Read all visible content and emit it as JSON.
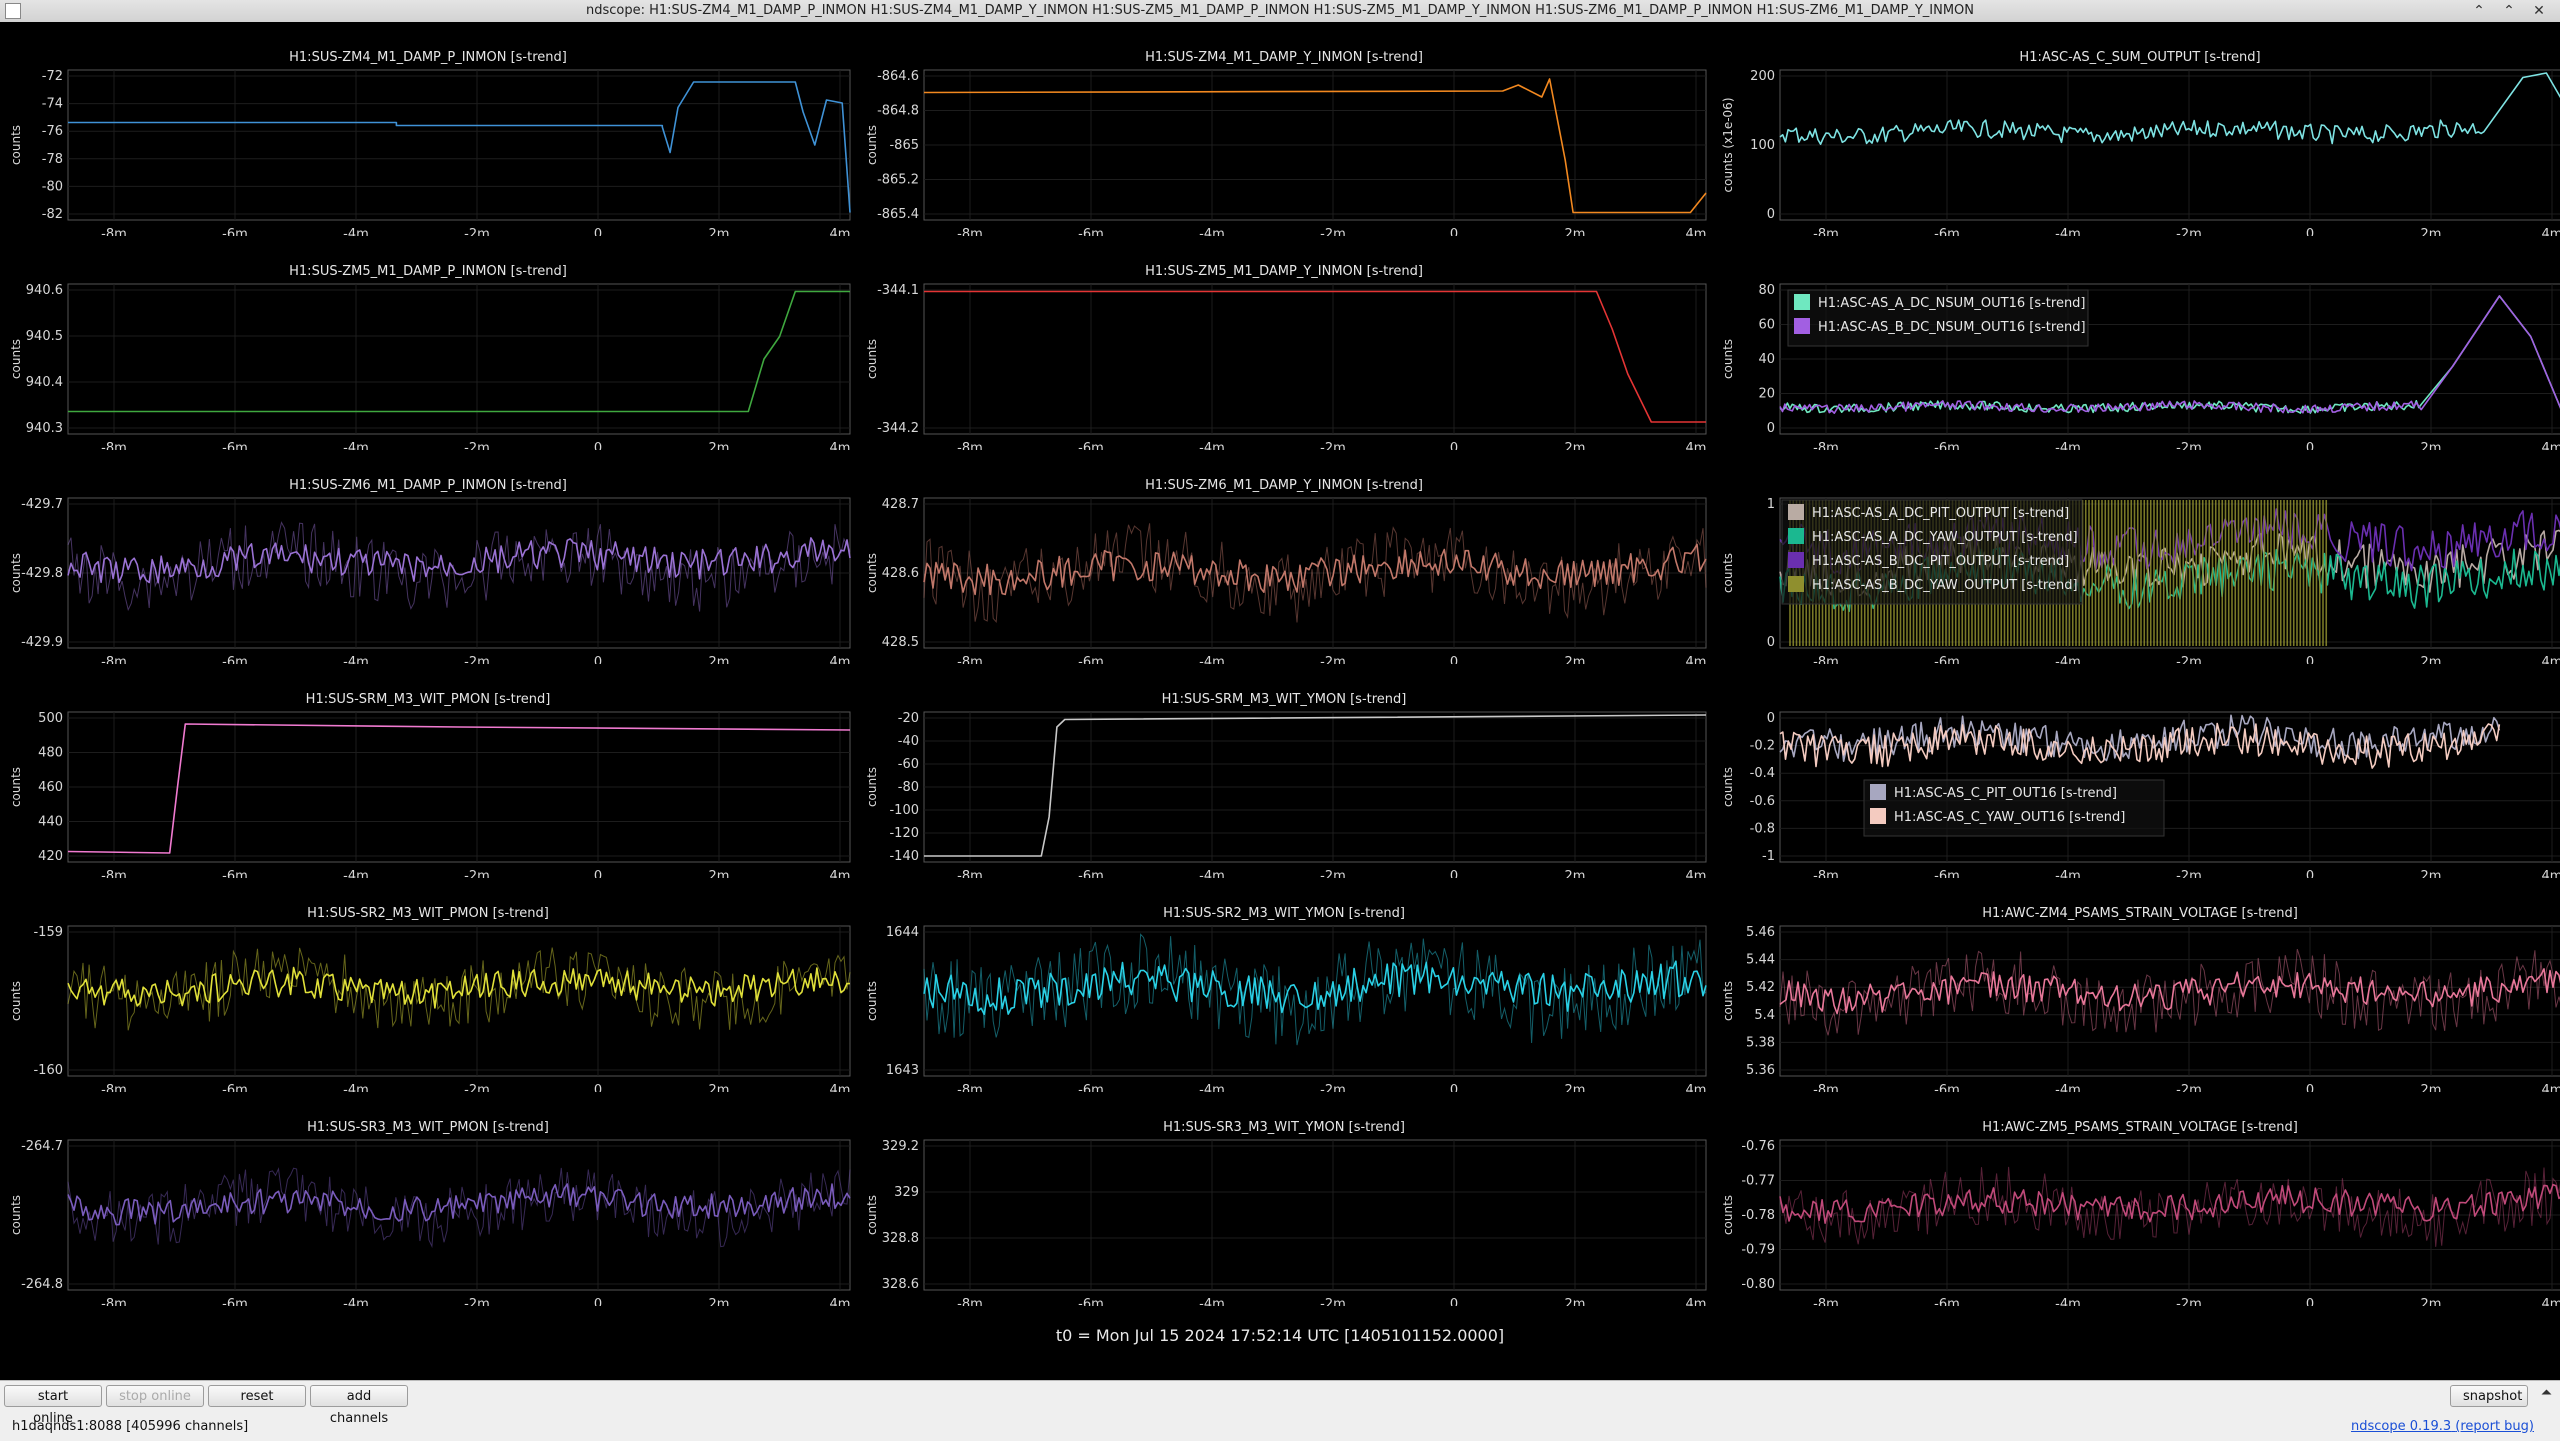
{
  "window": {
    "title": "ndscope: H1:SUS-ZM4_M1_DAMP_P_INMON H1:SUS-ZM4_M1_DAMP_Y_INMON H1:SUS-ZM5_M1_DAMP_P_INMON H1:SUS-ZM5_M1_DAMP_Y_INMON H1:SUS-ZM6_M1_DAMP_P_INMON H1:SUS-ZM6_M1_DAMP_Y_INMON",
    "minimize_glyph": "⌃",
    "maximize_glyph": "⌃",
    "close_glyph": "✕"
  },
  "x_tick_labels": [
    "-8m",
    "-6m",
    "-4m",
    "-2m",
    "0",
    "2m",
    "4m"
  ],
  "plots": [
    {
      "title": "H1:SUS-ZM4_M1_DAMP_P_INMON [s-trend]",
      "ylabel": "counts",
      "yticks": [
        "-72",
        "-74",
        "-76",
        "-78",
        "-80",
        "-82"
      ],
      "series": [
        {
          "color": "#3f92d6"
        }
      ]
    },
    {
      "title": "H1:SUS-ZM4_M1_DAMP_Y_INMON [s-trend]",
      "ylabel": "counts",
      "yticks": [
        "-864.6",
        "-864.8",
        "-865",
        "-865.2",
        "-865.4"
      ],
      "series": [
        {
          "color": "#f2881f"
        }
      ]
    },
    {
      "title": "H1:ASC-AS_C_SUM_OUTPUT [s-trend]",
      "ylabel": "counts (x1e-06)",
      "yticks": [
        "200",
        "100",
        "0"
      ],
      "series": [
        {
          "color": "#7ee3e3"
        }
      ]
    },
    {
      "title": "H1:SUS-ZM5_M1_DAMP_P_INMON [s-trend]",
      "ylabel": "counts",
      "yticks": [
        "940.6",
        "940.5",
        "940.4",
        "940.3"
      ],
      "series": [
        {
          "color": "#3fa83f"
        }
      ]
    },
    {
      "title": "H1:SUS-ZM5_M1_DAMP_Y_INMON [s-trend]",
      "ylabel": "counts",
      "yticks": [
        "-344.1",
        "-344.2"
      ],
      "series": [
        {
          "color": "#e43434"
        }
      ]
    },
    {
      "title": "",
      "ylabel": "counts",
      "yticks": [
        "80",
        "60",
        "40",
        "20",
        "0"
      ],
      "series": [
        {
          "name": "H1:ASC-AS_A_DC_NSUM_OUT16 [s-trend]",
          "color": "#6fe8c0"
        },
        {
          "name": "H1:ASC-AS_B_DC_NSUM_OUT16 [s-trend]",
          "color": "#a25fe2"
        }
      ]
    },
    {
      "title": "H1:SUS-ZM6_M1_DAMP_P_INMON [s-trend]",
      "ylabel": "counts",
      "yticks": [
        "-429.7",
        "-429.8",
        "-429.9"
      ],
      "series": [
        {
          "color": "#9a72d4"
        }
      ]
    },
    {
      "title": "H1:SUS-ZM6_M1_DAMP_Y_INMON [s-trend]",
      "ylabel": "counts",
      "yticks": [
        "428.7",
        "428.6",
        "428.5"
      ],
      "series": [
        {
          "color": "#c2786a"
        }
      ]
    },
    {
      "title": "",
      "ylabel": "counts",
      "yticks": [
        "1",
        "0"
      ],
      "series": [
        {
          "name": "H1:ASC-AS_A_DC_PIT_OUTPUT [s-trend]",
          "color": "#b9aba3"
        },
        {
          "name": "H1:ASC-AS_A_DC_YAW_OUTPUT [s-trend]",
          "color": "#1bb890"
        },
        {
          "name": "H1:ASC-AS_B_DC_PIT_OUTPUT [s-trend]",
          "color": "#6a2fb0"
        },
        {
          "name": "H1:ASC-AS_B_DC_YAW_OUTPUT [s-trend]",
          "color": "#8f8f2e"
        }
      ]
    },
    {
      "title": "H1:SUS-SRM_M3_WIT_PMON [s-trend]",
      "ylabel": "counts",
      "yticks": [
        "500",
        "480",
        "460",
        "440",
        "420"
      ],
      "series": [
        {
          "color": "#f07ad0"
        }
      ]
    },
    {
      "title": "H1:SUS-SRM_M3_WIT_YMON [s-trend]",
      "ylabel": "counts",
      "yticks": [
        "-20",
        "-40",
        "-60",
        "-80",
        "-100",
        "-120",
        "-140"
      ],
      "series": [
        {
          "color": "#c9c9c9"
        }
      ]
    },
    {
      "title": "",
      "ylabel": "counts",
      "yticks": [
        "0",
        "-0.2",
        "-0.4",
        "-0.6",
        "-0.8",
        "-1"
      ],
      "series": [
        {
          "name": "H1:ASC-AS_C_PIT_OUT16 [s-trend]",
          "color": "#a7a7c0"
        },
        {
          "name": "H1:ASC-AS_C_YAW_OUT16 [s-trend]",
          "color": "#f4cbc0"
        }
      ]
    },
    {
      "title": "H1:SUS-SR2_M3_WIT_PMON [s-trend]",
      "ylabel": "counts",
      "yticks": [
        "-159",
        "-160"
      ],
      "series": [
        {
          "color": "#e0e03a"
        }
      ]
    },
    {
      "title": "H1:SUS-SR2_M3_WIT_YMON [s-trend]",
      "ylabel": "counts",
      "yticks": [
        "1644",
        "1643"
      ],
      "series": [
        {
          "color": "#2ad1e6"
        }
      ]
    },
    {
      "title": "H1:AWC-ZM4_PSAMS_STRAIN_VOLTAGE [s-trend]",
      "ylabel": "counts",
      "yticks": [
        "5.46",
        "5.44",
        "5.42",
        "5.4",
        "5.38",
        "5.36"
      ],
      "series": [
        {
          "color": "#e8789a"
        }
      ]
    },
    {
      "title": "H1:SUS-SR3_M3_WIT_PMON [s-trend]",
      "ylabel": "counts",
      "yticks": [
        "-264.7",
        "-264.8"
      ],
      "series": [
        {
          "color": "#7a5cbc"
        }
      ]
    },
    {
      "title": "H1:SUS-SR3_M3_WIT_YMON [s-trend]",
      "ylabel": "counts",
      "yticks": [
        "329.2",
        "329",
        "328.8",
        "328.6"
      ],
      "series": []
    },
    {
      "title": "H1:AWC-ZM5_PSAMS_STRAIN_VOLTAGE [s-trend]",
      "ylabel": "counts",
      "yticks": [
        "-0.76",
        "-0.77",
        "-0.78",
        "-0.79",
        "-0.80"
      ],
      "series": [
        {
          "color": "#c04a7a"
        }
      ]
    }
  ],
  "t0_label": "t0 = Mon Jul 15 2024 17:52:14 UTC [1405101152.0000]",
  "toolbar": {
    "start_online": "start online",
    "stop_online": "stop online",
    "reset": "reset",
    "add_channels": "add channels",
    "snapshot": "snapshot",
    "collapse_glyph": "⏶"
  },
  "status": {
    "connection": "h1daqnds1:8088  [405996 channels]",
    "version": "ndscope 0.19.3",
    "report_bug": "(report bug)"
  }
}
